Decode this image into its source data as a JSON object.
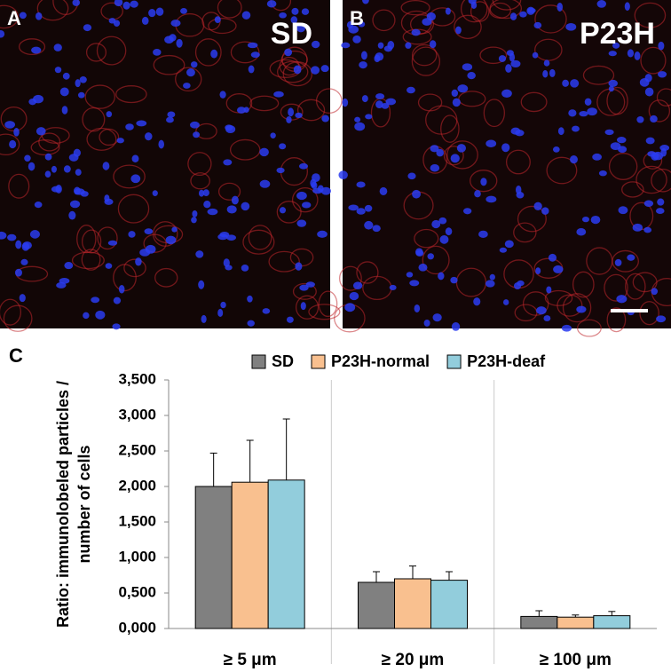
{
  "panels": [
    {
      "label": "A",
      "caption": "SD"
    },
    {
      "label": "B",
      "caption": "P23H"
    }
  ],
  "chart_panel_label": "C",
  "chart_data": {
    "type": "bar",
    "ylabel": [
      "Ratio: immunolobeled particles /",
      "number of cells"
    ],
    "categories": [
      "≥ 5 μm",
      "≥ 20 μm",
      "≥ 100 μm"
    ],
    "series": [
      {
        "name": "SD",
        "color": "#808080",
        "values": [
          2.0,
          0.65,
          0.17
        ],
        "errors": [
          0.47,
          0.15,
          0.08
        ]
      },
      {
        "name": "P23H-normal",
        "color": "#f9c08f",
        "values": [
          2.06,
          0.7,
          0.16
        ],
        "errors": [
          0.59,
          0.18,
          0.03
        ]
      },
      {
        "name": "P23H-deaf",
        "color": "#92cddc",
        "values": [
          2.09,
          0.68,
          0.18
        ],
        "errors": [
          0.86,
          0.12,
          0.06
        ]
      }
    ],
    "ylim": [
      0,
      3.5
    ],
    "yticks": [
      {
        "value": 0,
        "label": "0,000"
      },
      {
        "value": 0.5,
        "label": "0,500"
      },
      {
        "value": 1,
        "label": "1,000"
      },
      {
        "value": 1.5,
        "label": "1,500"
      },
      {
        "value": 2,
        "label": "2,000"
      },
      {
        "value": 2.5,
        "label": "2,500"
      },
      {
        "value": 3,
        "label": "3,000"
      },
      {
        "value": 3.5,
        "label": "3,500"
      }
    ]
  }
}
